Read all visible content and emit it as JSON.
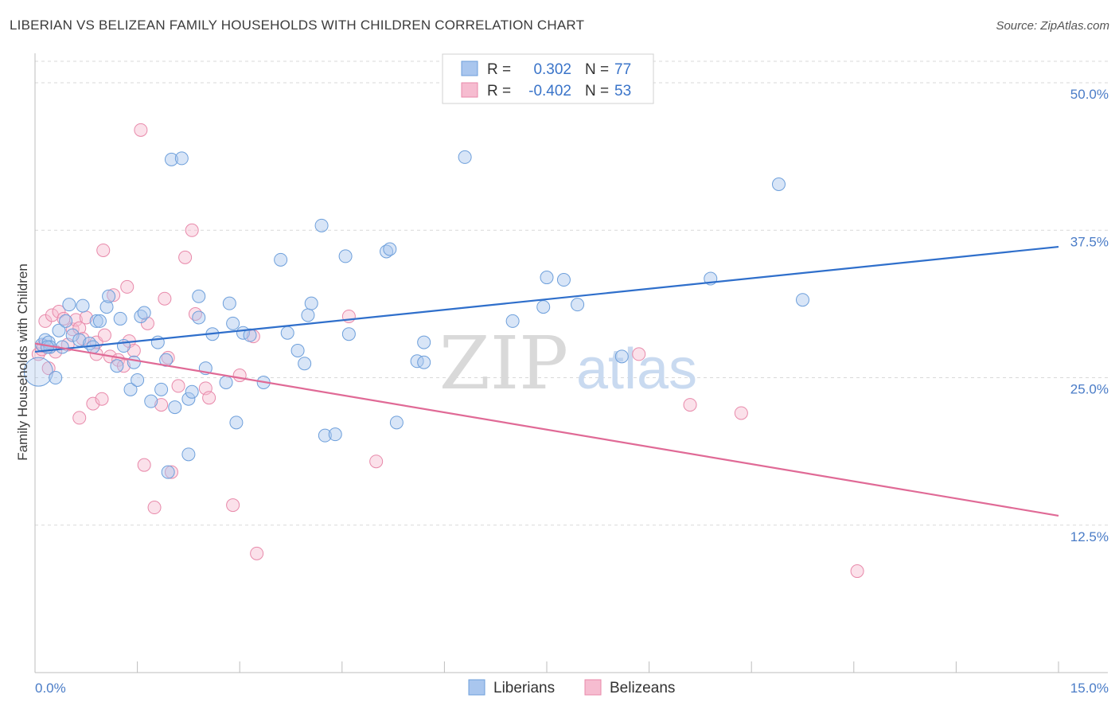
{
  "title": "LIBERIAN VS BELIZEAN FAMILY HOUSEHOLDS WITH CHILDREN CORRELATION CHART",
  "source": "Source: ZipAtlas.com",
  "colors": {
    "blue_fill": "#a9c6ee",
    "blue_stroke": "#6d9fdb",
    "blue_line": "#2f6fcb",
    "pink_fill": "#f6bcd0",
    "pink_stroke": "#e889aa",
    "pink_line": "#e06a96",
    "tick_text": "#4a7cc7",
    "grid": "#d9d9d9"
  },
  "legend": {
    "r_label": "R =",
    "n_label": "N =",
    "blue_r": "0.302",
    "blue_n": "77",
    "pink_r": "-0.402",
    "pink_n": "53"
  },
  "bottom_legend": {
    "blue": "Liberians",
    "pink": "Belizeans"
  },
  "watermark": {
    "zip": "ZIP",
    "atlas": "atlas"
  },
  "chart_data": {
    "type": "scatter",
    "title": "LIBERIAN VS BELIZEAN FAMILY HOUSEHOLDS WITH CHILDREN CORRELATION CHART",
    "xlabel": "",
    "ylabel": "Family Households with Children",
    "xlim": [
      0,
      15
    ],
    "ylim": [
      0,
      52.5
    ],
    "x_tick_labels": [
      "0.0%",
      "15.0%"
    ],
    "y_ticks": [
      {
        "value": 12.5,
        "label": "12.5%"
      },
      {
        "value": 25.0,
        "label": "25.0%"
      },
      {
        "value": 37.5,
        "label": "37.5%"
      },
      {
        "value": 50.0,
        "label": "50.0%"
      }
    ],
    "series": [
      {
        "name": "Liberians",
        "R": 0.302,
        "N": 77,
        "trend": {
          "x": [
            0,
            15
          ],
          "y": [
            27.2,
            36.1
          ]
        },
        "points": [
          [
            0.05,
            25.5
          ],
          [
            0.1,
            27.8
          ],
          [
            0.15,
            28.2
          ],
          [
            0.2,
            28.0
          ],
          [
            0.22,
            27.6
          ],
          [
            0.3,
            25.0
          ],
          [
            0.35,
            29.0
          ],
          [
            0.4,
            27.6
          ],
          [
            0.45,
            29.8
          ],
          [
            0.5,
            31.2
          ],
          [
            0.55,
            28.6
          ],
          [
            0.65,
            28.2
          ],
          [
            0.7,
            31.1
          ],
          [
            0.8,
            27.9
          ],
          [
            0.85,
            27.6
          ],
          [
            0.9,
            29.8
          ],
          [
            0.95,
            29.8
          ],
          [
            1.05,
            31.0
          ],
          [
            1.08,
            31.9
          ],
          [
            1.2,
            26.0
          ],
          [
            1.25,
            30.0
          ],
          [
            1.3,
            27.7
          ],
          [
            1.4,
            24.0
          ],
          [
            1.45,
            26.3
          ],
          [
            1.5,
            24.8
          ],
          [
            1.55,
            30.2
          ],
          [
            1.6,
            30.5
          ],
          [
            1.7,
            23.0
          ],
          [
            1.8,
            28.0
          ],
          [
            1.85,
            24.0
          ],
          [
            1.92,
            26.5
          ],
          [
            1.95,
            17.0
          ],
          [
            2.0,
            43.5
          ],
          [
            2.05,
            22.5
          ],
          [
            2.15,
            43.6
          ],
          [
            2.25,
            23.2
          ],
          [
            2.25,
            18.5
          ],
          [
            2.3,
            23.8
          ],
          [
            2.4,
            30.1
          ],
          [
            2.4,
            31.9
          ],
          [
            2.5,
            25.8
          ],
          [
            2.6,
            28.7
          ],
          [
            2.8,
            24.6
          ],
          [
            2.85,
            31.3
          ],
          [
            2.9,
            29.6
          ],
          [
            2.95,
            21.2
          ],
          [
            3.05,
            28.8
          ],
          [
            3.15,
            28.6
          ],
          [
            3.35,
            24.6
          ],
          [
            3.6,
            35.0
          ],
          [
            3.7,
            28.8
          ],
          [
            3.85,
            27.3
          ],
          [
            3.95,
            26.2
          ],
          [
            4.0,
            30.3
          ],
          [
            4.05,
            31.3
          ],
          [
            4.2,
            37.9
          ],
          [
            4.25,
            20.1
          ],
          [
            4.4,
            20.2
          ],
          [
            4.55,
            35.3
          ],
          [
            4.6,
            28.7
          ],
          [
            5.15,
            35.7
          ],
          [
            5.2,
            35.9
          ],
          [
            5.3,
            21.2
          ],
          [
            5.6,
            26.4
          ],
          [
            5.7,
            28.0
          ],
          [
            5.7,
            26.3
          ],
          [
            6.3,
            43.7
          ],
          [
            7.0,
            29.8
          ],
          [
            7.45,
            31.0
          ],
          [
            7.5,
            33.5
          ],
          [
            7.75,
            33.3
          ],
          [
            7.95,
            31.2
          ],
          [
            8.6,
            26.8
          ],
          [
            9.9,
            33.4
          ],
          [
            10.9,
            41.4
          ],
          [
            11.25,
            31.6
          ],
          [
            0.18,
            27.6
          ]
        ]
      },
      {
        "name": "Belizeans",
        "R": -0.402,
        "N": 53,
        "trend": {
          "x": [
            0,
            15
          ],
          "y": [
            27.9,
            13.3
          ]
        },
        "points": [
          [
            0.05,
            27.0
          ],
          [
            0.1,
            27.4
          ],
          [
            0.15,
            29.8
          ],
          [
            0.2,
            25.8
          ],
          [
            0.25,
            30.3
          ],
          [
            0.3,
            27.2
          ],
          [
            0.35,
            30.6
          ],
          [
            0.42,
            30.0
          ],
          [
            0.48,
            27.8
          ],
          [
            0.55,
            29.1
          ],
          [
            0.6,
            29.9
          ],
          [
            0.65,
            29.2
          ],
          [
            0.65,
            21.6
          ],
          [
            0.7,
            28.3
          ],
          [
            0.75,
            30.1
          ],
          [
            0.85,
            22.8
          ],
          [
            0.9,
            27.0
          ],
          [
            0.9,
            28.0
          ],
          [
            0.98,
            23.2
          ],
          [
            1.0,
            35.8
          ],
          [
            1.02,
            28.6
          ],
          [
            1.1,
            26.8
          ],
          [
            1.15,
            32.0
          ],
          [
            1.22,
            26.5
          ],
          [
            1.3,
            26.0
          ],
          [
            1.35,
            32.7
          ],
          [
            1.38,
            28.1
          ],
          [
            1.45,
            27.3
          ],
          [
            1.55,
            46.0
          ],
          [
            1.6,
            17.6
          ],
          [
            1.65,
            29.6
          ],
          [
            1.75,
            14.0
          ],
          [
            1.85,
            22.7
          ],
          [
            1.9,
            31.7
          ],
          [
            1.95,
            26.7
          ],
          [
            2.0,
            17.0
          ],
          [
            2.1,
            24.3
          ],
          [
            2.2,
            35.2
          ],
          [
            2.3,
            37.5
          ],
          [
            2.35,
            30.4
          ],
          [
            2.5,
            24.1
          ],
          [
            2.55,
            23.3
          ],
          [
            2.9,
            14.2
          ],
          [
            3.0,
            25.2
          ],
          [
            3.25,
            10.1
          ],
          [
            3.2,
            28.5
          ],
          [
            4.6,
            30.2
          ],
          [
            5.0,
            17.9
          ],
          [
            8.85,
            27.0
          ],
          [
            9.6,
            22.7
          ],
          [
            10.35,
            22.0
          ],
          [
            12.05,
            8.6
          ],
          [
            0.12,
            27.7
          ]
        ]
      }
    ]
  }
}
